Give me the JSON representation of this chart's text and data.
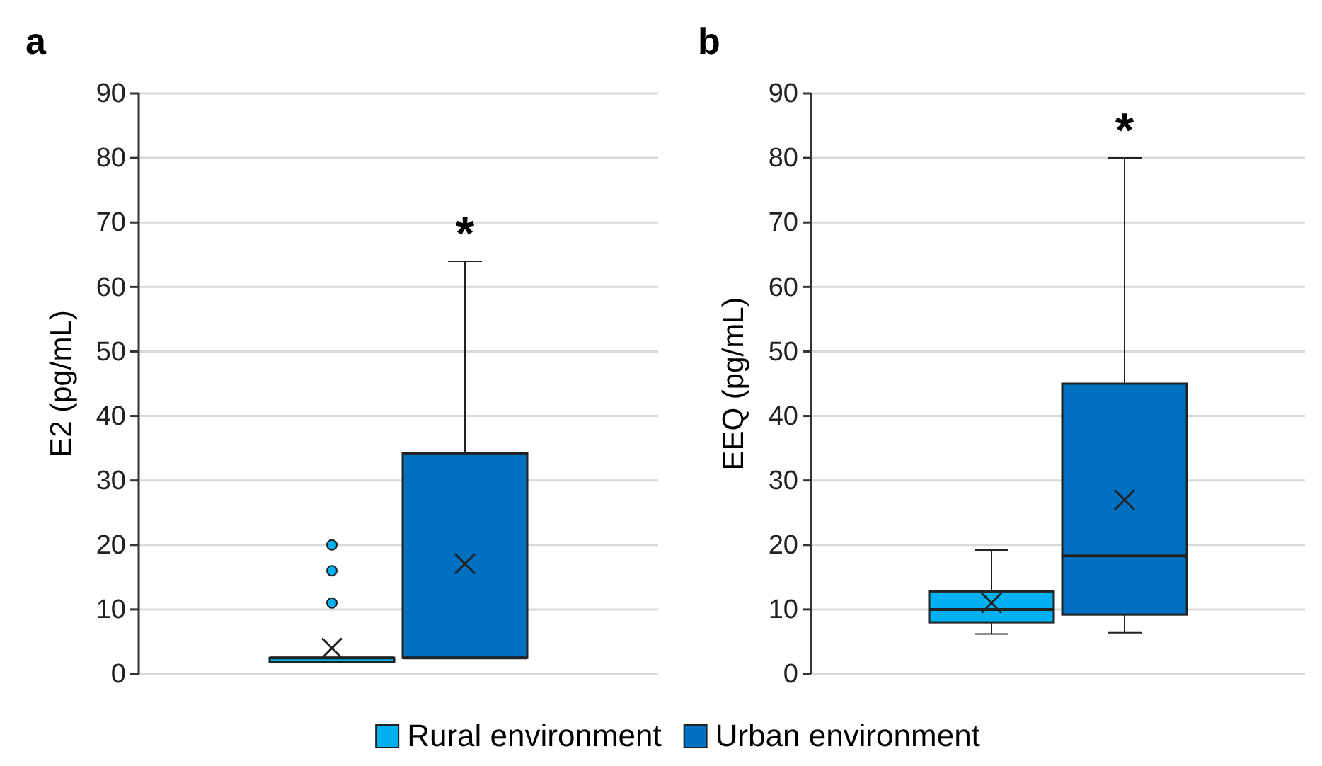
{
  "chart_data": [
    {
      "type": "box",
      "title": "a",
      "ylabel": "E2 (pg/mL)",
      "categories": [
        null
      ],
      "ylim": [
        0,
        90
      ],
      "yticks": [
        0,
        10,
        20,
        30,
        40,
        50,
        60,
        70,
        80,
        90
      ],
      "grid": "y",
      "legend": "bottom",
      "annotations": [
        "*"
      ],
      "series": [
        {
          "name": "Rural environment",
          "color": "#00b0f0",
          "boxes": [
            {
              "low": 2.5,
              "q1": 2.5,
              "median": 2.5,
              "q3": 2.5,
              "high": 2.5,
              "mean": 4,
              "outliers": [
                11,
                16,
                20
              ]
            }
          ]
        },
        {
          "name": "Urban environment",
          "color": "#0070c0",
          "boxes": [
            {
              "low": 2.5,
              "q1": 2.5,
              "median": 2.5,
              "q3": 34.2,
              "high": 64,
              "mean": 17.1
            }
          ]
        }
      ]
    },
    {
      "type": "box",
      "title": "b",
      "ylabel": "EEQ (pg/mL)",
      "categories": [
        null
      ],
      "ylim": [
        0,
        90
      ],
      "yticks": [
        0,
        10,
        20,
        30,
        40,
        50,
        60,
        70,
        80,
        90
      ],
      "grid": "y",
      "annotations": [
        "*"
      ],
      "series": [
        {
          "color": "#00b0f0",
          "boxes": [
            {
              "low": 6.2,
              "q1": 8,
              "median": 10,
              "q3": 12.8,
              "high": 19.2,
              "mean": 11
            }
          ]
        },
        {
          "color": "#0070c0",
          "boxes": [
            {
              "low": 6.4,
              "q1": 9.2,
              "median": 18.3,
              "q3": 45,
              "high": 80,
              "mean": 27
            }
          ]
        }
      ]
    }
  ]
}
